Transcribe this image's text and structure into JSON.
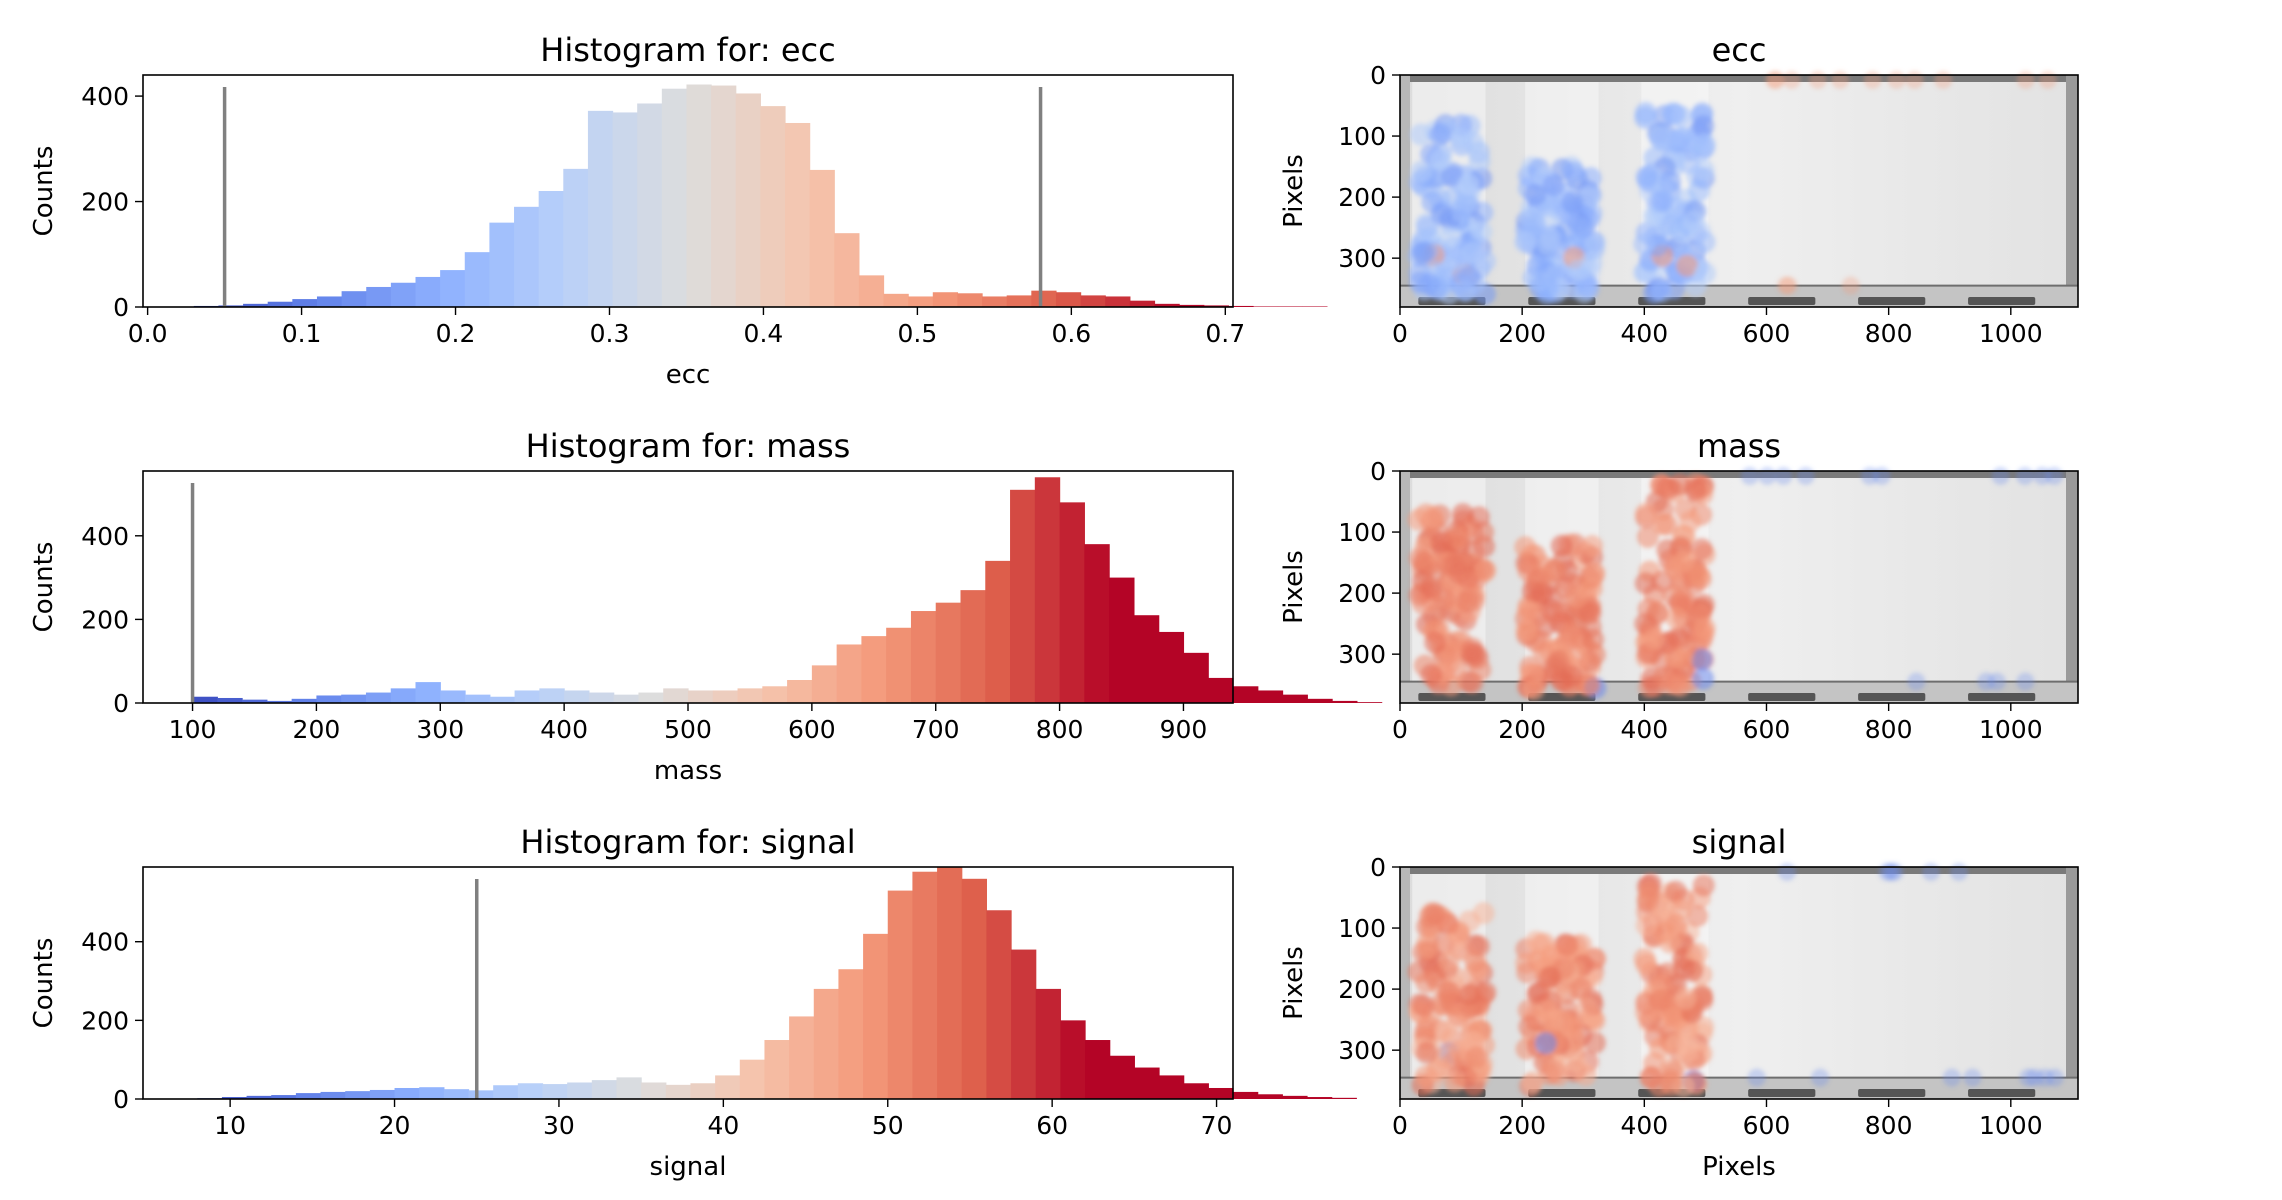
{
  "chart_data": [
    {
      "type": "bar",
      "title": "Histogram for: ecc",
      "xlabel": "ecc",
      "ylabel": "Counts",
      "xlim": [
        -0.003,
        0.705
      ],
      "ylim": [
        0,
        440
      ],
      "xticks": [
        0.0,
        0.1,
        0.2,
        0.3,
        0.4,
        0.5,
        0.6,
        0.7
      ],
      "xtick_labels": [
        "0.0",
        "0.1",
        "0.2",
        "0.3",
        "0.4",
        "0.5",
        "0.6",
        "0.7"
      ],
      "yticks": [
        0,
        200,
        400
      ],
      "ytick_labels": [
        "0",
        "200",
        "400"
      ],
      "threshold_lines": [
        0.05,
        0.58
      ],
      "bin_start": 0.03,
      "bin_width": 0.016,
      "values": [
        2,
        3,
        6,
        10,
        15,
        20,
        30,
        38,
        46,
        57,
        70,
        104,
        160,
        190,
        220,
        262,
        372,
        369,
        386,
        414,
        422,
        420,
        405,
        381,
        349,
        260,
        140,
        60,
        25,
        20,
        28,
        26,
        20,
        22,
        31,
        28,
        22,
        20,
        12,
        6,
        4,
        3,
        2,
        1,
        1,
        1,
        0,
        0,
        0,
        0,
        0,
        0,
        0,
        0,
        0,
        0,
        0,
        0,
        0,
        0,
        0,
        3,
        1,
        0,
        0,
        0
      ],
      "color_range": [
        0.03,
        0.67
      ],
      "grid": false,
      "legend": "none"
    },
    {
      "type": "bar",
      "title": "Histogram for: mass",
      "xlabel": "mass",
      "ylabel": "Counts",
      "xlim": [
        60,
        940
      ],
      "ylim": [
        0,
        555
      ],
      "xticks": [
        100,
        200,
        300,
        400,
        500,
        600,
        700,
        800,
        900
      ],
      "xtick_labels": [
        "100",
        "200",
        "300",
        "400",
        "500",
        "600",
        "700",
        "800",
        "900"
      ],
      "yticks": [
        0,
        200,
        400
      ],
      "ytick_labels": [
        "0",
        "200",
        "400"
      ],
      "threshold_lines": [
        100
      ],
      "bin_start": 100,
      "bin_width": 20,
      "values": [
        15,
        12,
        8,
        5,
        10,
        18,
        20,
        25,
        35,
        50,
        30,
        20,
        15,
        30,
        35,
        30,
        25,
        20,
        25,
        35,
        30,
        30,
        35,
        40,
        55,
        90,
        140,
        160,
        180,
        220,
        240,
        270,
        340,
        510,
        540,
        480,
        380,
        300,
        210,
        170,
        120,
        60,
        40,
        30,
        20,
        10,
        5,
        2
      ],
      "color_range": [
        100,
        840
      ],
      "grid": false,
      "legend": "none"
    },
    {
      "type": "bar",
      "title": "Histogram for: signal",
      "xlabel": "signal",
      "ylabel": "Counts",
      "xlim": [
        4.7,
        71
      ],
      "ylim": [
        0,
        590
      ],
      "xticks": [
        10,
        20,
        30,
        40,
        50,
        60,
        70
      ],
      "xtick_labels": [
        "10",
        "20",
        "30",
        "40",
        "50",
        "60",
        "70"
      ],
      "yticks": [
        0,
        200,
        400
      ],
      "ytick_labels": [
        "0",
        "200",
        "400"
      ],
      "threshold_lines": [
        25
      ],
      "bin_start": 8,
      "bin_width": 1.5,
      "values": [
        2,
        5,
        8,
        10,
        15,
        18,
        20,
        23,
        28,
        30,
        25,
        22,
        35,
        40,
        38,
        42,
        48,
        55,
        42,
        36,
        40,
        60,
        100,
        150,
        210,
        280,
        330,
        420,
        530,
        578,
        590,
        560,
        480,
        380,
        280,
        200,
        150,
        110,
        80,
        60,
        40,
        28,
        18,
        12,
        8,
        5,
        3
      ],
      "color_range": [
        8,
        62
      ],
      "grid": false,
      "legend": "none"
    },
    {
      "type": "scatter",
      "title": "ecc",
      "xlabel": "",
      "ylabel": "Pixels",
      "xlim": [
        0,
        1110
      ],
      "ylim": [
        380,
        0
      ],
      "xticks": [
        0,
        200,
        400,
        600,
        800,
        1000
      ],
      "xtick_labels": [
        "0",
        "200",
        "400",
        "600",
        "800",
        "1000"
      ],
      "yticks": [
        0,
        100,
        200,
        300
      ],
      "ytick_labels": [
        "0",
        "100",
        "200",
        "300"
      ],
      "dominant_color": "#8fb1f5",
      "background": "grayscale image"
    },
    {
      "type": "scatter",
      "title": "mass",
      "xlabel": "",
      "ylabel": "Pixels",
      "xlim": [
        0,
        1110
      ],
      "ylim": [
        380,
        0
      ],
      "xticks": [
        0,
        200,
        400,
        600,
        800,
        1000
      ],
      "xtick_labels": [
        "0",
        "200",
        "400",
        "600",
        "800",
        "1000"
      ],
      "yticks": [
        0,
        100,
        200,
        300
      ],
      "ytick_labels": [
        "0",
        "100",
        "200",
        "300"
      ],
      "dominant_color": "#e9785d",
      "background": "grayscale image"
    },
    {
      "type": "scatter",
      "title": "signal",
      "xlabel": "Pixels",
      "ylabel": "Pixels",
      "xlim": [
        0,
        1110
      ],
      "ylim": [
        380,
        0
      ],
      "xticks": [
        0,
        200,
        400,
        600,
        800,
        1000
      ],
      "xtick_labels": [
        "0",
        "200",
        "400",
        "600",
        "800",
        "1000"
      ],
      "yticks": [
        0,
        100,
        200,
        300
      ],
      "ytick_labels": [
        "0",
        "100",
        "200",
        "300"
      ],
      "dominant_color": "#ee8468",
      "background": "grayscale image"
    }
  ]
}
